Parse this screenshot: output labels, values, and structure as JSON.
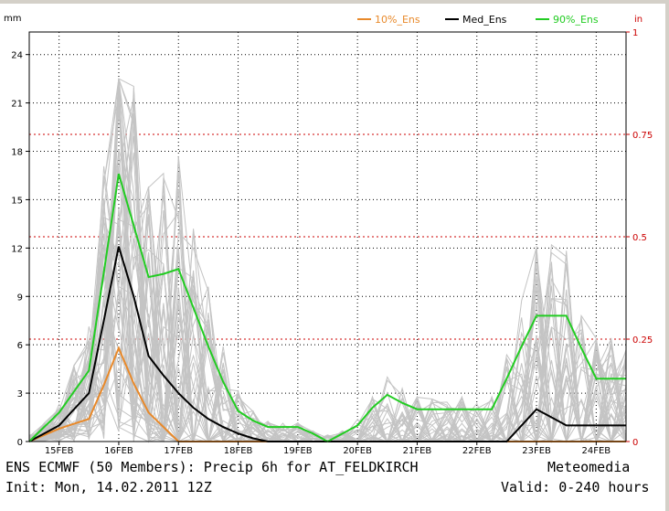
{
  "chart_data": {
    "type": "line",
    "left_unit": "mm",
    "right_unit": "in",
    "yticks": [
      0,
      3,
      6,
      9,
      12,
      15,
      18,
      21,
      24
    ],
    "right_ticks": [
      {
        "value_in": 0,
        "label": "0"
      },
      {
        "value_in": 0.25,
        "label": "0.25"
      },
      {
        "value_in": 0.5,
        "label": "0.5"
      },
      {
        "value_in": 0.75,
        "label": "0.75"
      },
      {
        "value_in": 1,
        "label": "1"
      }
    ],
    "ylim": [
      0,
      25.4
    ],
    "xlim_hours": [
      0,
      240
    ],
    "xticks": [
      {
        "hour": 12,
        "label": "15FEB"
      },
      {
        "hour": 36,
        "label": "16FEB"
      },
      {
        "hour": 60,
        "label": "17FEB"
      },
      {
        "hour": 84,
        "label": "18FEB"
      },
      {
        "hour": 108,
        "label": "19FEB"
      },
      {
        "hour": 132,
        "label": "20FEB"
      },
      {
        "hour": 156,
        "label": "21FEB"
      },
      {
        "hour": 180,
        "label": "22FEB"
      },
      {
        "hour": 204,
        "label": "23FEB"
      },
      {
        "hour": 228,
        "label": "24FEB"
      }
    ],
    "x_hours": [
      0,
      6,
      12,
      18,
      24,
      30,
      36,
      42,
      48,
      54,
      60,
      66,
      72,
      78,
      84,
      90,
      96,
      102,
      108,
      114,
      120,
      126,
      132,
      138,
      144,
      150,
      156,
      162,
      168,
      174,
      180,
      186,
      192,
      198,
      204,
      210,
      216,
      222,
      228,
      234,
      240
    ],
    "grid": true,
    "legend_position": "top-right",
    "series": [
      {
        "name": "10%_Ens",
        "color": "#e8892a",
        "values": [
          0,
          0.4,
          0.8,
          1.1,
          1.4,
          3.5,
          5.8,
          3.6,
          1.8,
          0.9,
          0,
          0,
          0,
          0,
          0,
          0,
          0,
          0,
          0,
          0,
          0,
          0,
          0,
          0,
          0,
          0,
          0,
          0,
          0,
          0,
          0,
          0,
          0,
          0,
          0,
          0,
          0,
          0,
          0,
          0,
          0
        ]
      },
      {
        "name": "Med_Ens",
        "color": "#000000",
        "values": [
          0,
          0.5,
          1.0,
          2.0,
          3.0,
          7.5,
          12.1,
          9.0,
          5.3,
          4.1,
          3.0,
          2.1,
          1.4,
          0.9,
          0.5,
          0.2,
          0,
          0,
          0,
          0,
          0,
          0,
          0,
          0,
          0,
          0,
          0,
          0,
          0,
          0,
          0,
          0,
          0,
          1.0,
          2.0,
          1.5,
          1.0,
          1.0,
          1.0,
          1.0,
          1.0
        ]
      },
      {
        "name": "90%_Ens",
        "color": "#22cc22",
        "values": [
          0,
          0.9,
          1.8,
          3.1,
          4.4,
          10.5,
          16.6,
          13.4,
          10.2,
          10.4,
          10.7,
          8.3,
          5.9,
          3.7,
          1.9,
          1.3,
          0.9,
          0.9,
          0.9,
          0.5,
          0,
          0.5,
          1.0,
          2.1,
          2.9,
          2.4,
          2.0,
          2.0,
          2.0,
          2.0,
          2.0,
          2.0,
          3.9,
          5.9,
          7.8,
          7.8,
          7.8,
          5.8,
          3.9,
          3.9,
          3.9
        ]
      }
    ]
  },
  "footer": {
    "line1_left": "ENS ECMWF (50 Members): Precip 6h for AT_FELDKIRCH",
    "line1_right": "Meteomedia",
    "line2_left": "Init: Mon, 14.02.2011 12Z",
    "line2_right": "Valid: 0-240 hours"
  }
}
